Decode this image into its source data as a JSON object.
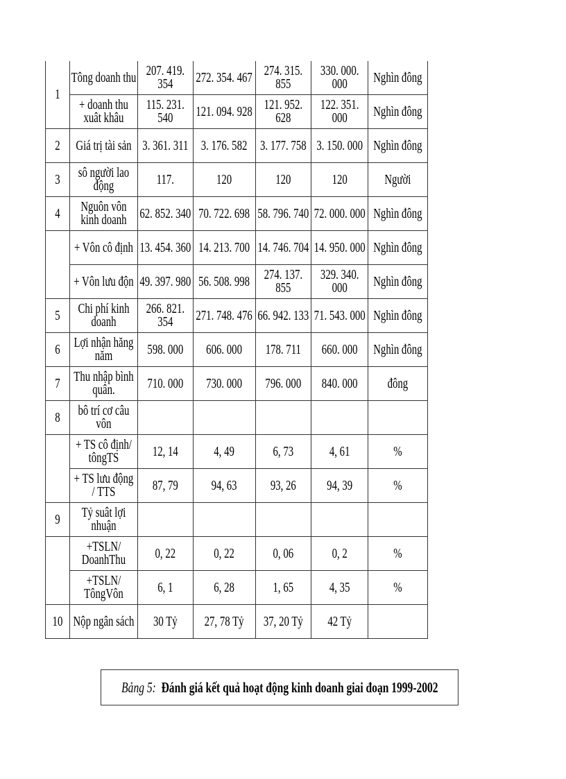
{
  "table": {
    "rows": [
      {
        "no": "1",
        "no_rowspan": 2,
        "label": "Tông doanh thu",
        "values": [
          "207. 419.\n354",
          "272. 354. 467",
          "274. 315.\n855",
          "330. 000.\n000"
        ],
        "unit": "Nghìn đông"
      },
      {
        "label": "+ doanh thu\nxuât khâu",
        "values": [
          "115. 231.\n540",
          "121. 094. 928",
          "121. 952.\n628",
          "122. 351.\n000"
        ],
        "unit": "Nghìn đông"
      },
      {
        "no": "2",
        "label": "Giá trị tài  sản",
        "values": [
          "3. 361. 311",
          "3. 176. 582",
          "3. 177. 758",
          "3. 150. 000"
        ],
        "unit": "Nghìn đông"
      },
      {
        "no": "3",
        "label": "sô người lao\nđộng",
        "values": [
          "117.",
          "120",
          "120",
          "120"
        ],
        "unit": "Người"
      },
      {
        "no": "4",
        "label": "Nguôn vôn\nkinh  doanh",
        "values": [
          "62. 852. 340",
          "70. 722. 698",
          "58. 796. 740",
          "72. 000. 000"
        ],
        "unit": "Nghìn đông"
      },
      {
        "no": "",
        "no_rowspan": 2,
        "label": "+ Vôn cô định",
        "values": [
          "13. 454. 360",
          "14. 213. 700",
          "14. 746. 704",
          "14. 950. 000"
        ],
        "unit": "Nghìn đông"
      },
      {
        "label": "+ Vôn lưu độn",
        "values": [
          "49. 397. 980",
          "56. 508. 998",
          "274. 137.\n855",
          "329. 340.\n000"
        ],
        "unit": "Nghìn đông"
      },
      {
        "no": "5",
        "label": "Chi phí kinh\ndoanh",
        "values": [
          "266. 821.\n354",
          "271. 748. 476",
          "66. 942. 133",
          "71. 543. 000"
        ],
        "unit": "Nghìn đông"
      },
      {
        "no": "6",
        "label": "Lợi nhận hăng\nnăm",
        "values": [
          "598. 000",
          "606. 000",
          "178. 711",
          "660. 000"
        ],
        "unit": "Nghìn đông"
      },
      {
        "no": "7",
        "label": "Thu nhập bình\nquân.",
        "values": [
          "710. 000",
          "730. 000",
          "796. 000",
          "840. 000"
        ],
        "unit": "đông"
      },
      {
        "no": "8",
        "label": "bô trí cơ câu\nvôn",
        "values": [
          "",
          "",
          "",
          ""
        ],
        "unit": ""
      },
      {
        "no": "",
        "no_rowspan": 2,
        "label": "+ TS cô định/\ntôngTS",
        "values": [
          "12, 14",
          "4, 49",
          "6, 73",
          "4, 61"
        ],
        "unit": "%"
      },
      {
        "label": "+ TS lưu động\n/ TTS",
        "values": [
          "87, 79",
          "94, 63",
          "93, 26",
          "94, 39"
        ],
        "unit": "%"
      },
      {
        "no": "9",
        "label": "Tỷ suât lợi\nnhuận",
        "values": [
          "",
          "",
          "",
          ""
        ],
        "unit": ""
      },
      {
        "no": "",
        "no_rowspan": 2,
        "label": "+TSLN/\nDoanhThu",
        "values": [
          "0, 22",
          "0, 22",
          "0, 06",
          "0, 2"
        ],
        "unit": "%"
      },
      {
        "label": "+TSLN/\nTôngVôn",
        "values": [
          "6, 1",
          "6, 28",
          "1, 65",
          "4, 35"
        ],
        "unit": "%"
      },
      {
        "no": "10",
        "label": "Nộp ngân sách",
        "values": [
          "30 Tỷ",
          "27, 78 Tỷ",
          "37, 20 Tỷ",
          "42 Tỷ"
        ],
        "unit": ""
      }
    ]
  },
  "caption": {
    "prefix": "Bảng 5:",
    "title": "Đánh giá kết quả hoạt động kinh doanh giai đoạn 1999-2002"
  }
}
